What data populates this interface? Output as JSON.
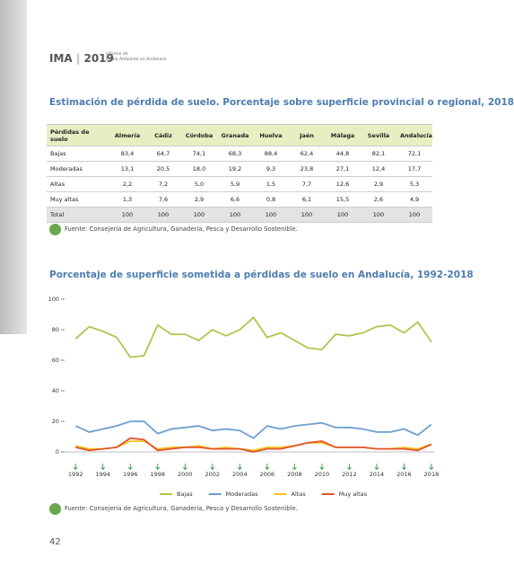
{
  "header": {
    "logo": "IMA",
    "year": "2019",
    "subtitle_line1": "Informe de",
    "subtitle_line2": "Medio Ambiente en Andalucía"
  },
  "table_section": {
    "title": "Estimación de pérdida de suelo. Porcentaje sobre superficie provincial o regional, 2018",
    "table": {
      "columns": [
        "Pérdidas de suelo",
        "Almería",
        "Cádiz",
        "Córdoba",
        "Granada",
        "Huelva",
        "Jaén",
        "Málaga",
        "Sevilla",
        "Andalucía"
      ],
      "rows": [
        [
          "Bajas",
          "83,4",
          "64,7",
          "74,1",
          "68,3",
          "88,4",
          "62,4",
          "44,8",
          "82,1",
          "72,1"
        ],
        [
          "Moderadas",
          "13,1",
          "20,5",
          "18,0",
          "19,2",
          "9,3",
          "23,8",
          "27,1",
          "12,4",
          "17,7"
        ],
        [
          "Altas",
          "2,2",
          "7,2",
          "5,0",
          "5,9",
          "1,5",
          "7,7",
          "12,6",
          "2,9",
          "5,3"
        ],
        [
          "Muy altas",
          "1,3",
          "7,6",
          "2,9",
          "6,6",
          "0,8",
          "6,1",
          "15,5",
          "2,6",
          "4,9"
        ],
        [
          "Total",
          "100",
          "100",
          "100",
          "100",
          "100",
          "100",
          "100",
          "100",
          "100"
        ]
      ]
    },
    "source": "Fuente: Consejería de Agricultura, Ganadería, Pesca y Desarrollo Sostenible."
  },
  "chart_section": {
    "chart_data": {
      "type": "line",
      "title": "Porcentaje de superficie sometida a pérdidas de suelo en Andalucía, 1992-2018",
      "x": [
        1992,
        1993,
        1994,
        1995,
        1996,
        1997,
        1998,
        1999,
        2000,
        2001,
        2002,
        2003,
        2004,
        2005,
        2006,
        2007,
        2008,
        2009,
        2010,
        2011,
        2012,
        2013,
        2014,
        2015,
        2016,
        2017,
        2018
      ],
      "xlim": [
        1991.2,
        2018.2
      ],
      "xticks": [
        1992,
        1994,
        1996,
        1998,
        2000,
        2002,
        2004,
        2006,
        2008,
        2010,
        2012,
        2014,
        2016,
        2018
      ],
      "ylim": [
        0,
        100
      ],
      "yticks": [
        0,
        20,
        40,
        60,
        80,
        100
      ],
      "series": [
        {
          "name": "Bajas",
          "color": "#a9c84c",
          "values": [
            74,
            82,
            79,
            75,
            62,
            63,
            83,
            77,
            77,
            73,
            80,
            76,
            80,
            88,
            75,
            78,
            73,
            68,
            67,
            77,
            76,
            78,
            82,
            83,
            78,
            85,
            72
          ]
        },
        {
          "name": "Moderadas",
          "color": "#6f9fcd",
          "values": [
            17,
            13,
            15,
            17,
            20,
            20,
            12,
            15,
            16,
            17,
            14,
            15,
            14,
            9,
            17,
            15,
            17,
            18,
            19,
            16,
            16,
            15,
            13,
            13,
            15,
            11,
            18
          ]
        },
        {
          "name": "Altas",
          "color": "#f2c421",
          "values": [
            4,
            2,
            2,
            3,
            7,
            7,
            2,
            3,
            3,
            4,
            2,
            3,
            2,
            1,
            3,
            3,
            4,
            6,
            6,
            3,
            3,
            3,
            2,
            2,
            3,
            2,
            5
          ]
        },
        {
          "name": "Muy altas",
          "color": "#e3542c",
          "values": [
            3,
            1,
            2,
            3,
            9,
            8,
            1,
            2,
            3,
            3,
            2,
            2,
            2,
            0,
            2,
            2,
            4,
            6,
            7,
            3,
            3,
            3,
            2,
            2,
            2,
            1,
            5
          ]
        }
      ]
    },
    "source": "Fuente: Consejería de Agricultura, Ganadería, Pesca y Desarrollo Sostenible."
  },
  "page_number": "42"
}
